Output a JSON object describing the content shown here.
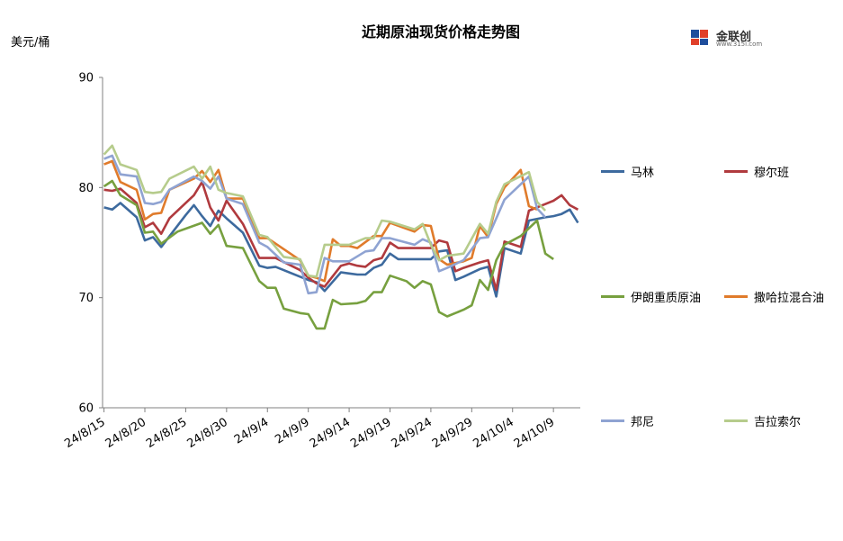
{
  "title": "近期原油现货价格走势图",
  "unit": "美元/桶",
  "logo": {
    "name": "金联创",
    "url": "www.315i.com"
  },
  "chart_data": {
    "type": "line",
    "title": "近期原油现货价格走势图",
    "ylabel": "美元/桶",
    "ylim": [
      60,
      90
    ],
    "yticks": [
      "60",
      "70",
      "80",
      "90"
    ],
    "x": [
      0,
      1,
      2,
      3,
      4,
      5,
      6,
      7,
      8,
      9,
      10,
      11,
      12,
      13,
      14,
      15,
      16,
      17,
      18,
      19,
      20,
      21,
      22,
      23,
      24,
      25,
      26,
      27,
      28,
      29,
      30,
      31,
      32,
      33,
      34,
      35,
      36,
      37,
      38,
      39,
      40,
      41,
      42,
      43,
      44,
      45,
      46,
      47,
      48,
      49,
      50,
      51,
      52,
      53,
      54,
      55,
      56,
      57,
      58
    ],
    "xtick_index": [
      0,
      5,
      10,
      15,
      20,
      25,
      30,
      35,
      40,
      45,
      50,
      55
    ],
    "xtick_labels": [
      "24/8/15",
      "24/8/20",
      "24/8/25",
      "24/8/30",
      "24/9/4",
      "24/9/9",
      "24/9/14",
      "24/9/19",
      "24/9/24",
      "24/9/29",
      "24/10/4",
      "24/10/9"
    ],
    "legend_position": "right",
    "series": [
      {
        "name": "马林",
        "color": "#3d6a9e",
        "values": [
          78.2,
          78.0,
          78.6,
          null,
          77.3,
          75.2,
          75.5,
          74.6,
          null,
          null,
          77.5,
          78.4,
          77.4,
          76.5,
          77.9,
          77.2,
          null,
          75.9,
          null,
          72.9,
          72.7,
          72.8,
          null,
          null,
          71.9,
          71.6,
          71.4,
          70.6,
          null,
          72.3,
          72.2,
          72.1,
          72.1,
          72.7,
          73.0,
          74.0,
          73.5,
          73.5,
          73.5,
          null,
          73.5,
          74.2,
          74.3,
          71.6,
          71.9,
          null,
          72.6,
          72.8,
          70.1,
          74.5,
          null,
          74.0,
          77.0,
          null,
          77.3,
          77.4,
          77.6,
          78.0,
          76.8
        ]
      },
      {
        "name": "穆尔班",
        "color": "#b03a3e",
        "values": [
          79.8,
          79.7,
          79.9,
          null,
          78.6,
          76.4,
          76.8,
          75.8,
          77.2,
          null,
          null,
          79.3,
          80.5,
          78.2,
          77.0,
          78.8,
          null,
          76.7,
          null,
          73.6,
          73.6,
          73.6,
          null,
          null,
          72.5,
          71.8,
          71.3,
          71.0,
          null,
          72.9,
          73.1,
          72.9,
          72.8,
          73.4,
          73.6,
          75.0,
          74.5,
          74.5,
          74.5,
          null,
          74.5,
          75.2,
          75.0,
          72.4,
          72.7,
          null,
          73.2,
          73.4,
          70.7,
          75.1,
          null,
          74.6,
          77.9,
          null,
          78.5,
          78.8,
          79.3,
          78.4,
          78.0
        ]
      },
      {
        "name": "伊朗重质原油",
        "color": "#77a03f",
        "values": [
          80.1,
          80.6,
          79.3,
          null,
          78.4,
          75.9,
          76.0,
          74.9,
          null,
          76.0,
          null,
          null,
          76.8,
          75.8,
          76.6,
          74.7,
          null,
          74.5,
          null,
          71.5,
          70.9,
          70.9,
          69.0,
          null,
          68.6,
          68.5,
          67.2,
          67.2,
          69.8,
          69.4,
          null,
          69.5,
          69.7,
          70.5,
          70.5,
          72.0,
          null,
          71.5,
          70.9,
          71.5,
          71.2,
          68.7,
          68.3,
          null,
          68.9,
          69.3,
          71.6,
          70.7,
          73.4,
          74.8,
          null,
          75.6,
          null,
          77.0,
          74.0,
          73.5,
          null,
          null,
          null
        ]
      },
      {
        "name": "撒哈拉混合油",
        "color": "#e07b2b",
        "values": [
          82.1,
          82.4,
          80.5,
          null,
          79.8,
          77.1,
          77.6,
          77.7,
          79.8,
          null,
          null,
          80.8,
          81.5,
          80.5,
          81.6,
          79.0,
          null,
          79.0,
          null,
          75.4,
          75.4,
          null,
          null,
          null,
          73.4,
          72.0,
          71.8,
          71.5,
          75.3,
          74.7,
          74.7,
          74.5,
          null,
          75.6,
          75.6,
          76.8,
          null,
          null,
          76.0,
          76.6,
          76.5,
          73.5,
          73.0,
          null,
          73.3,
          73.6,
          76.5,
          75.5,
          78.5,
          80.0,
          80.8,
          81.6,
          78.3,
          78.0,
          null,
          null,
          null,
          null,
          null
        ]
      },
      {
        "name": "邦尼",
        "color": "#8fa3d2",
        "values": [
          82.6,
          82.9,
          81.2,
          null,
          81.0,
          78.6,
          78.5,
          78.7,
          79.8,
          null,
          null,
          81.0,
          80.6,
          79.9,
          81.0,
          79.0,
          null,
          78.5,
          null,
          75.0,
          74.6,
          null,
          73.2,
          null,
          73.0,
          70.4,
          70.5,
          73.6,
          73.3,
          null,
          73.3,
          null,
          74.2,
          74.3,
          75.4,
          75.4,
          null,
          null,
          74.8,
          75.3,
          75.0,
          72.4,
          72.7,
          null,
          73.4,
          null,
          75.4,
          75.5,
          77.2,
          78.9,
          null,
          null,
          81.0,
          78.1,
          77.3,
          null,
          null,
          null,
          null
        ]
      },
      {
        "name": "吉拉索尔",
        "color": "#b6cc8c",
        "values": [
          83.0,
          83.8,
          82.1,
          null,
          81.6,
          79.6,
          79.5,
          79.6,
          80.8,
          null,
          null,
          81.9,
          80.8,
          81.9,
          79.8,
          79.5,
          null,
          79.2,
          null,
          75.7,
          75.5,
          null,
          73.7,
          null,
          73.5,
          72.0,
          71.9,
          74.8,
          74.8,
          null,
          74.8,
          null,
          75.4,
          75.4,
          77.0,
          76.9,
          null,
          null,
          76.2,
          76.7,
          74.8,
          73.4,
          73.8,
          null,
          74.0,
          null,
          76.7,
          75.8,
          78.7,
          80.3,
          null,
          null,
          81.4,
          78.7,
          77.9,
          null,
          null,
          null,
          null
        ]
      }
    ]
  }
}
